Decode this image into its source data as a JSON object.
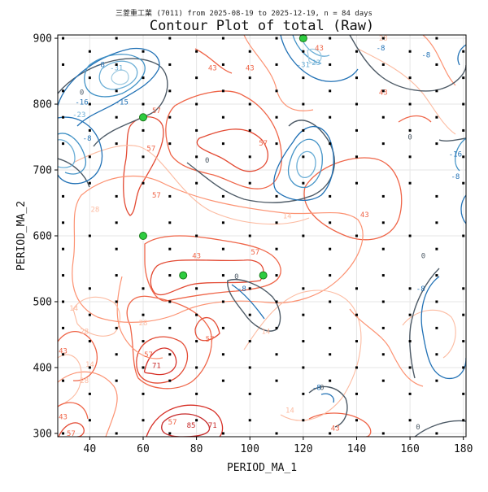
{
  "chart_data": {
    "type": "contour",
    "subtitle": "三菱重工業 (7011) from 2025-08-19 to 2025-12-19, n = 84 days",
    "title": "Contour Plot of total (Raw)",
    "xlabel": "PERIOD_MA_1",
    "ylabel": "PERIOD_MA_2",
    "xlim": [
      28,
      181
    ],
    "ylim": [
      295,
      905
    ],
    "xticks": [
      "40",
      "60",
      "80",
      "100",
      "120",
      "140",
      "160",
      "180"
    ],
    "yticks": [
      "300",
      "400",
      "500",
      "600",
      "700",
      "800",
      "900"
    ],
    "grid": true,
    "colors": {
      "strong_positive": "#c62828",
      "positive": "#ef6548",
      "weak_positive": "#fcbba1",
      "zero": "#4d5a66",
      "negative": "#2171b5",
      "strong_negative": "#6baed6",
      "highlight": "#2ecc40"
    },
    "contour_labels": [
      {
        "text": "85",
        "x": 78,
        "y": 312,
        "level": 85
      },
      {
        "text": "71",
        "x": 86,
        "y": 312,
        "level": 71
      },
      {
        "text": "71",
        "x": 65,
        "y": 403,
        "level": 71
      },
      {
        "text": "57",
        "x": 62,
        "y": 420,
        "level": 57
      },
      {
        "text": "57",
        "x": 85,
        "y": 443,
        "level": 57
      },
      {
        "text": "57",
        "x": 71,
        "y": 317,
        "level": 57
      },
      {
        "text": "57",
        "x": 33,
        "y": 300,
        "level": 57
      },
      {
        "text": "57",
        "x": 65,
        "y": 790,
        "level": 57
      },
      {
        "text": "57",
        "x": 63,
        "y": 733,
        "level": 57
      },
      {
        "text": "57",
        "x": 65,
        "y": 662,
        "level": 57
      },
      {
        "text": "57",
        "x": 105,
        "y": 741,
        "level": 57
      },
      {
        "text": "57",
        "x": 102,
        "y": 575,
        "level": 57
      },
      {
        "text": "43",
        "x": 80,
        "y": 570,
        "level": 43
      },
      {
        "text": "43",
        "x": 100,
        "y": 855,
        "level": 43
      },
      {
        "text": "43",
        "x": 126,
        "y": 885,
        "level": 43
      },
      {
        "text": "43",
        "x": 150,
        "y": 818,
        "level": 43
      },
      {
        "text": "43",
        "x": 143,
        "y": 632,
        "level": 43
      },
      {
        "text": "43",
        "x": 132,
        "y": 308,
        "level": 43
      },
      {
        "text": "43",
        "x": 30,
        "y": 325,
        "level": 43
      },
      {
        "text": "43",
        "x": 30,
        "y": 425,
        "level": 43
      },
      {
        "text": "43",
        "x": 86,
        "y": 855,
        "level": 43
      },
      {
        "text": "28",
        "x": 42,
        "y": 640,
        "level": 28
      },
      {
        "text": "28",
        "x": 60,
        "y": 468,
        "level": 28
      },
      {
        "text": "28",
        "x": 38,
        "y": 455,
        "level": 28
      },
      {
        "text": "28",
        "x": 38,
        "y": 380,
        "level": 28
      },
      {
        "text": "28",
        "x": 150,
        "y": 900,
        "level": 28
      },
      {
        "text": "14",
        "x": 34,
        "y": 490,
        "level": 14
      },
      {
        "text": "14",
        "x": 106,
        "y": 455,
        "level": 14
      },
      {
        "text": "14",
        "x": 40,
        "y": 405,
        "level": 14
      },
      {
        "text": "14",
        "x": 115,
        "y": 335,
        "level": 14
      },
      {
        "text": "14",
        "x": 114,
        "y": 630,
        "level": 14
      },
      {
        "text": "0",
        "x": 37,
        "y": 818,
        "level": 0
      },
      {
        "text": "0",
        "x": 84,
        "y": 715,
        "level": 0
      },
      {
        "text": "0",
        "x": 160,
        "y": 750,
        "level": 0
      },
      {
        "text": "0",
        "x": 165,
        "y": 570,
        "level": 0
      },
      {
        "text": "0",
        "x": 95,
        "y": 538,
        "level": 0
      },
      {
        "text": "0",
        "x": 163,
        "y": 310,
        "level": 0
      },
      {
        "text": "0",
        "x": 127,
        "y": 370,
        "level": 0
      },
      {
        "text": "-8",
        "x": 44,
        "y": 860,
        "level": -8
      },
      {
        "text": "-8",
        "x": 39,
        "y": 748,
        "level": -8
      },
      {
        "text": "-8",
        "x": 149,
        "y": 885,
        "level": -8
      },
      {
        "text": "-8",
        "x": 166,
        "y": 875,
        "level": -8
      },
      {
        "text": "-8",
        "x": 164,
        "y": 520,
        "level": -8
      },
      {
        "text": "-8",
        "x": 125,
        "y": 370,
        "level": -8
      },
      {
        "text": "-8",
        "x": 97,
        "y": 520,
        "level": -8
      },
      {
        "text": "-8",
        "x": 177,
        "y": 690,
        "level": -8
      },
      {
        "text": "-15",
        "x": 52,
        "y": 803,
        "level": -15
      },
      {
        "text": "-16",
        "x": 37,
        "y": 803,
        "level": -16
      },
      {
        "text": "-16",
        "x": 177,
        "y": 724,
        "level": -16
      },
      {
        "text": "-23",
        "x": 36,
        "y": 784,
        "level": -23
      },
      {
        "text": "-23",
        "x": 124,
        "y": 863,
        "level": -23
      },
      {
        "text": "-31",
        "x": 50,
        "y": 855,
        "level": -31
      },
      {
        "text": "-31",
        "x": 120,
        "y": 860,
        "level": -31
      }
    ],
    "sample_points": {
      "x": [
        30,
        40,
        50,
        60,
        70,
        80,
        90,
        100,
        110,
        120,
        130,
        140,
        150,
        160,
        170,
        180
      ],
      "y": [
        300,
        320,
        360,
        380,
        400,
        420,
        440,
        460,
        480,
        500,
        520,
        540,
        580,
        600,
        620,
        660,
        680,
        720,
        740,
        760,
        780,
        800,
        820,
        840,
        860,
        880,
        900
      ]
    },
    "highlight_points": [
      {
        "x": 60,
        "y": 780
      },
      {
        "x": 60,
        "y": 600
      },
      {
        "x": 75,
        "y": 540
      },
      {
        "x": 105,
        "y": 540
      },
      {
        "x": 120,
        "y": 900
      }
    ]
  }
}
